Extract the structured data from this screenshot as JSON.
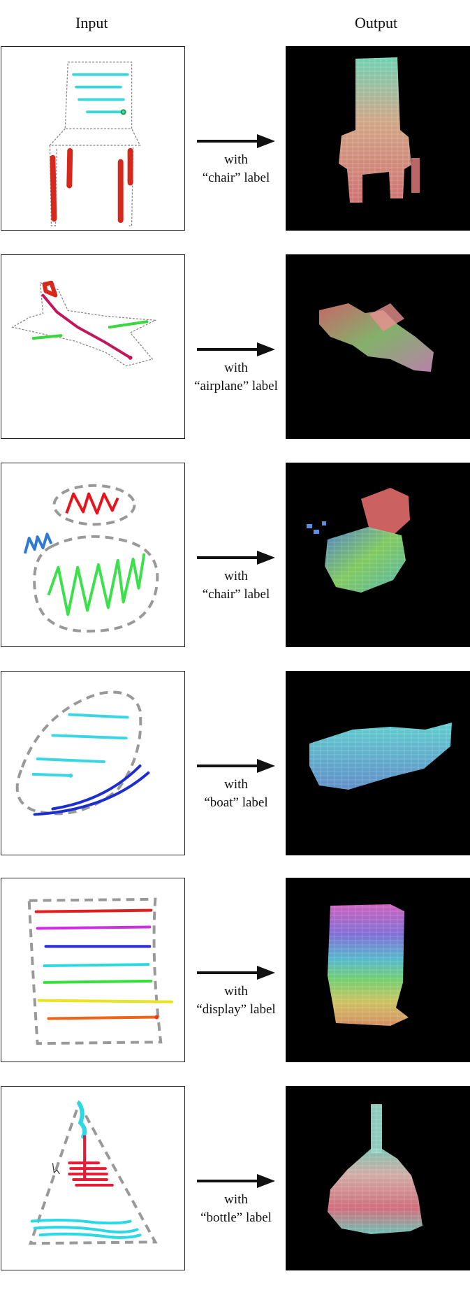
{
  "headers": {
    "input": "Input",
    "output": "Output"
  },
  "rows": [
    {
      "with": "with",
      "label": "“chair” label"
    },
    {
      "with": "with",
      "label": "“airplane” label"
    },
    {
      "with": "with",
      "label": "“chair” label"
    },
    {
      "with": "with",
      "label": "“boat” label"
    },
    {
      "with": "with",
      "label": "“display” label"
    },
    {
      "with": "with",
      "label": "“bottle” label"
    }
  ]
}
